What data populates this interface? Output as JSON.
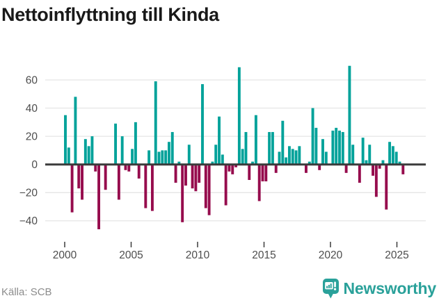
{
  "title": "Nettoinflyttning till Kinda",
  "footer": {
    "source": "Källa: SCB",
    "brand": "Newsworthy"
  },
  "chart_data": {
    "type": "bar",
    "title": "Nettoinflyttning till Kinda",
    "xlabel": "",
    "ylabel": "",
    "frequency": "quarterly",
    "x_start": {
      "year": 2000,
      "quarter": 1
    },
    "x_end": {
      "year": 2025,
      "quarter": 2
    },
    "values": [
      35,
      12,
      -34,
      48,
      -17,
      -25,
      18,
      13,
      20,
      -5,
      -46,
      0,
      -18,
      0,
      0,
      29,
      -25,
      20,
      -4,
      -5,
      11,
      30,
      -10,
      0,
      -31,
      10,
      -33,
      59,
      9,
      10,
      10,
      16,
      23,
      -13,
      2,
      -41,
      -15,
      14,
      -17,
      -19,
      -13,
      57,
      -31,
      -36,
      2,
      14,
      34,
      7,
      -29,
      -5,
      -7,
      -2,
      69,
      11,
      23,
      -11,
      2,
      35,
      -26,
      -12,
      -12,
      23,
      23,
      -6,
      9,
      31,
      5,
      13,
      11,
      10,
      13,
      0,
      -6,
      2,
      40,
      26,
      -4,
      18,
      9,
      0,
      24,
      26,
      24,
      23,
      -6,
      70,
      14,
      0,
      -13,
      19,
      3,
      14,
      -8,
      -23,
      -3,
      3,
      -32,
      16,
      13,
      9,
      2,
      -7
    ],
    "x_tick_years": [
      2000,
      2005,
      2010,
      2015,
      2020,
      2025
    ],
    "y_ticks": [
      -40,
      -20,
      0,
      20,
      40,
      60
    ],
    "y_tick_labels": [
      "−40",
      "−20",
      "0",
      "20",
      "40",
      "60"
    ],
    "ylim": [
      -50,
      72
    ],
    "grid": true,
    "legend": "none",
    "colors": {
      "positive": "#00a29a",
      "negative": "#960c4d",
      "grid": "#e7e7e7",
      "zero_line": "#3b3b3b",
      "axis_text": "#4d4d4d",
      "brand_teal": "#2aa19a"
    }
  }
}
